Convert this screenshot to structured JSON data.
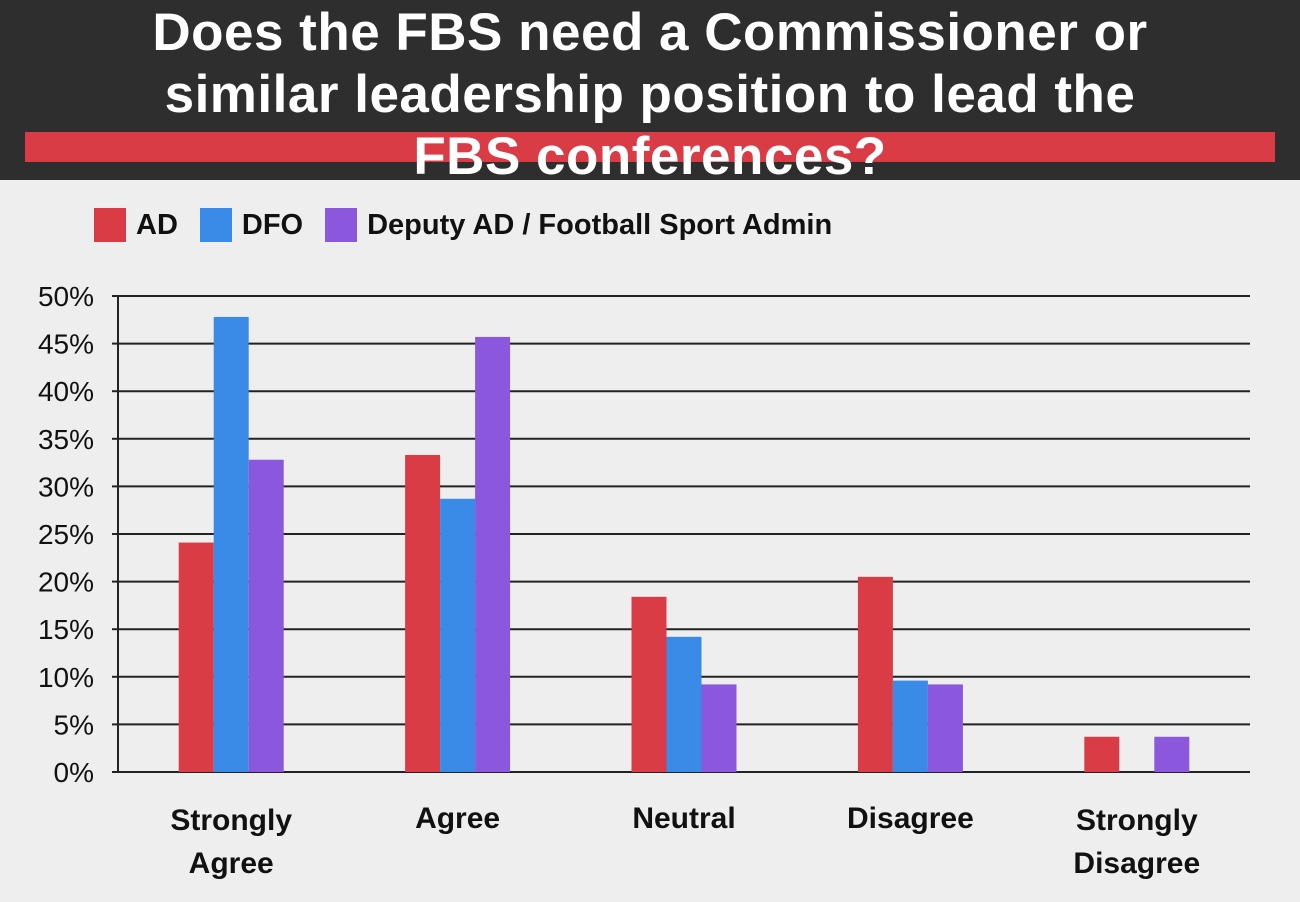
{
  "header": {
    "title_lines": [
      "Does the FBS need a Commissioner or",
      "similar leadership position to lead the",
      "FBS conferences?"
    ]
  },
  "colors": {
    "header_bg": "#2e2e2e",
    "accent_stripe": "#d93c45",
    "background": "#eeeeee",
    "gridline": "#222222"
  },
  "chart_data": {
    "type": "bar",
    "categories": [
      "Strongly Agree",
      "Agree",
      "Neutral",
      "Disagree",
      "Strongly Disagree"
    ],
    "category_label_lines": [
      [
        "Strongly",
        "Agree"
      ],
      [
        "Agree"
      ],
      [
        "Neutral"
      ],
      [
        "Disagree"
      ],
      [
        "Strongly",
        "Disagree"
      ]
    ],
    "series": [
      {
        "name": "AD",
        "color": "#d93c45",
        "values": [
          24.1,
          33.3,
          18.4,
          20.5,
          3.7
        ]
      },
      {
        "name": "DFO",
        "color": "#3a8ae8",
        "values": [
          47.8,
          28.7,
          14.2,
          9.6,
          0
        ]
      },
      {
        "name": "Deputy AD / Football Sport Admin",
        "color": "#8b57dc",
        "values": [
          32.8,
          45.7,
          9.2,
          9.2,
          3.7
        ]
      }
    ],
    "ylim": [
      0,
      50
    ],
    "yticks": [
      "0%",
      "5%",
      "10%",
      "15%",
      "20%",
      "25%",
      "30%",
      "35%",
      "40%",
      "45%",
      "50%"
    ],
    "grid": true,
    "legend_position": "top-left"
  }
}
